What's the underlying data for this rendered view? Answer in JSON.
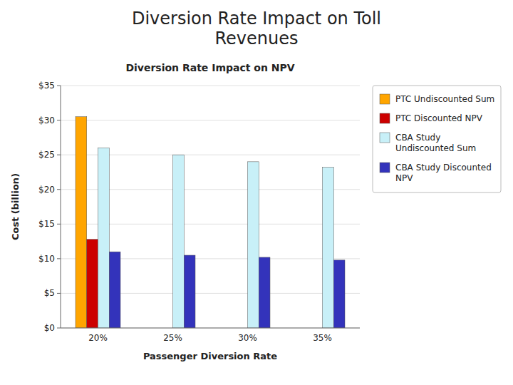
{
  "chart_data": {
    "type": "bar",
    "title": "Diversion Rate Impact on Toll\nRevenues",
    "subtitle": "Diversion Rate Impact on NPV",
    "x_label": "Passenger Diversion Rate",
    "y_label": "Cost (billion)",
    "categories": [
      "20%",
      "25%",
      "30%",
      "35%"
    ],
    "series": [
      {
        "name": "PTC Undiscounted Sum",
        "color": "#FFA500",
        "values": [
          30.5,
          0,
          0,
          0
        ]
      },
      {
        "name": "PTC Discounted NPV",
        "color": "#CC0000",
        "values": [
          12.8,
          0,
          0,
          0
        ]
      },
      {
        "name": "CBA Study\nUndiscounted Sum",
        "color": "#C8F0F8",
        "values": [
          26.0,
          25.0,
          24.0,
          23.2
        ]
      },
      {
        "name": "CBA Study Discounted\nNPV",
        "color": "#3333BB",
        "values": [
          11.0,
          10.5,
          10.2,
          9.8
        ]
      }
    ],
    "ylim": [
      0,
      35
    ],
    "yticks": [
      {
        "value": 0,
        "label": "$0"
      },
      {
        "value": 5,
        "label": "$5"
      },
      {
        "value": 10,
        "label": "$10"
      },
      {
        "value": 15,
        "label": "$15"
      },
      {
        "value": 20,
        "label": "$20"
      },
      {
        "value": 25,
        "label": "$25"
      },
      {
        "value": 30,
        "label": "$30"
      },
      {
        "value": 35,
        "label": "$35"
      }
    ],
    "grid": true,
    "legend": "right"
  }
}
